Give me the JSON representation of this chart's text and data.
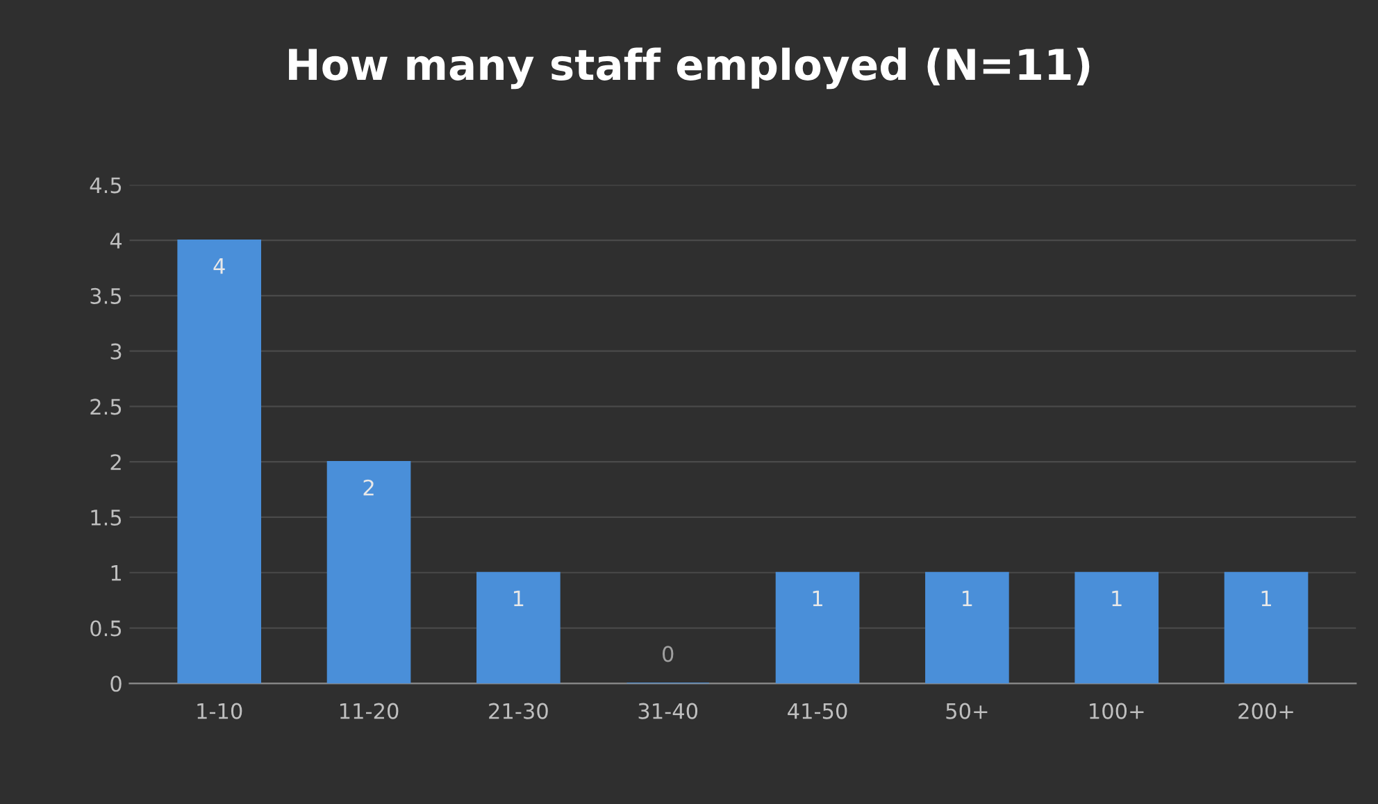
{
  "chart_data": {
    "type": "bar",
    "title": "How many staff employed (N=11)",
    "categories": [
      "1-10",
      "11-20",
      "21-30",
      "31-40",
      "41-50",
      "50+",
      "100+",
      "200+"
    ],
    "values": [
      4,
      2,
      1,
      0,
      1,
      1,
      1,
      1
    ],
    "color": "#4a8fd9",
    "ylim": [
      0,
      4.5
    ],
    "yticks": [
      0,
      0.5,
      1,
      1.5,
      2,
      2.5,
      3,
      3.5,
      4,
      4.5
    ],
    "grid": "y",
    "data_labels": true,
    "legend": false
  }
}
